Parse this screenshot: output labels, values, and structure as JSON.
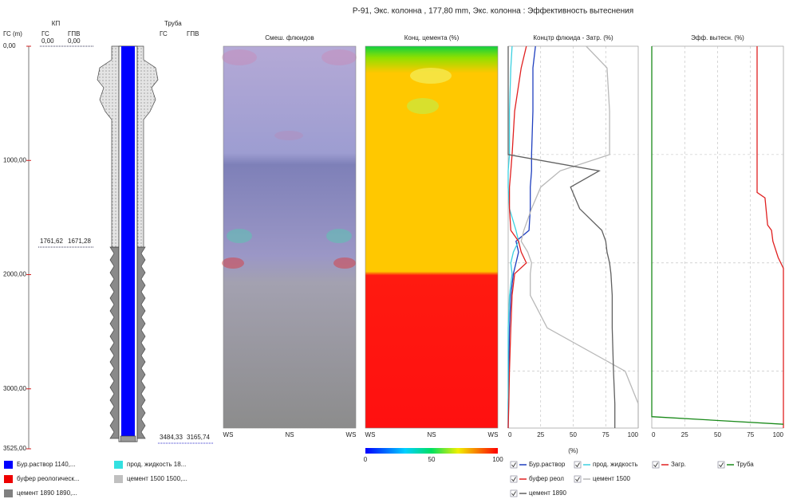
{
  "title": "Р-91, Экс. колонна , 177,80 mm, Экс. колонна : Эффективность вытеснения",
  "depth_track": {
    "axis_label": "ГС (m)",
    "ylim": [
      0,
      3525
    ],
    "yticks": [
      {
        "value": 0,
        "label": "0,00"
      },
      {
        "value": 1000,
        "label": "1000,00"
      },
      {
        "value": 2000,
        "label": "2000,00"
      },
      {
        "value": 3000,
        "label": "3000,00"
      },
      {
        "value": 3525,
        "label": "3525,00"
      }
    ],
    "kp": {
      "label": "КП",
      "gs_label": "ГС",
      "gpv_label": "ГПВ",
      "gs_top": "0,00",
      "gpv_top": "0,00",
      "gs_shoe": "1761,62",
      "gpv_shoe": "1671,28"
    },
    "pipe": {
      "label": "Труба",
      "gs_label": "ГС",
      "gpv_label": "ГПВ",
      "gs_bottom": "3484,33",
      "gpv_bottom": "3165,74"
    }
  },
  "panels": [
    {
      "title": "Смеш. флюидов",
      "x_labels": [
        "WS",
        "NS",
        "WS"
      ]
    },
    {
      "title": "Конц. цемента (%)",
      "x_labels": [
        "WS",
        "NS",
        "WS"
      ],
      "colorbar_lim": [
        0,
        100
      ],
      "colorbar_ticks": [
        0,
        50,
        100
      ]
    },
    {
      "title": "Концтр флюида - Затр. (%)",
      "xlim": [
        0,
        100
      ],
      "xticks": [
        0,
        25,
        50,
        75,
        100
      ],
      "xlabel": "(%)",
      "grid": true,
      "series": [
        {
          "name": "Бур.раствор",
          "color": "#1f3fbf",
          "depth": [
            0,
            200,
            600,
            1000,
            1150,
            1300,
            1500,
            1700,
            1800,
            1900,
            2000,
            2100,
            2300,
            2600,
            3000,
            3300,
            3525
          ],
          "values": [
            21,
            19,
            19,
            18,
            18,
            17,
            17,
            16,
            6,
            8,
            6,
            4,
            2,
            1,
            0.5,
            0,
            0
          ]
        },
        {
          "name": "прод. жидкость",
          "color": "#3cd0e0",
          "depth": [
            0,
            200,
            600,
            1000,
            1150,
            1300,
            1500,
            1700,
            1800,
            1900,
            2000,
            2100,
            2300,
            2600,
            3000,
            3300,
            3525
          ],
          "values": [
            3,
            2,
            1,
            1,
            0,
            0,
            1,
            6,
            8,
            4,
            2,
            3,
            1,
            0,
            0,
            0,
            0
          ]
        },
        {
          "name": "буфер реол",
          "color": "#e02020",
          "depth": [
            0,
            200,
            600,
            1000,
            1150,
            1300,
            1500,
            1700,
            1800,
            1900,
            2000,
            2100,
            2300,
            2600,
            3000,
            3300,
            3525
          ],
          "values": [
            14,
            10,
            5,
            3,
            2,
            1,
            1,
            2,
            8,
            10,
            14,
            5,
            3,
            2,
            1,
            0.5,
            0
          ]
        },
        {
          "name": "цемент 1500",
          "color": "#b8b8b8",
          "depth": [
            0,
            200,
            600,
            1000,
            1150,
            1300,
            1500,
            1700,
            1800,
            1900,
            2000,
            2100,
            2300,
            2600,
            3000,
            3300,
            3525
          ],
          "values": [
            60,
            76,
            78,
            78,
            40,
            25,
            18,
            12,
            10,
            15,
            18,
            17,
            17,
            30,
            90,
            100,
            100
          ]
        },
        {
          "name": "цемент 1890",
          "color": "#606060",
          "depth": [
            0,
            200,
            600,
            1000,
            1150,
            1300,
            1500,
            1700,
            1800,
            1900,
            2000,
            2100,
            2300,
            2600,
            3000,
            3300,
            3525
          ],
          "values": [
            0,
            0,
            0,
            0,
            70,
            48,
            55,
            72,
            75,
            76,
            78,
            79,
            80,
            80,
            81,
            82,
            82
          ]
        }
      ]
    },
    {
      "title": "Эфф. вытесн. (%)",
      "xlim": [
        0,
        100
      ],
      "xticks": [
        0,
        25,
        50,
        75,
        100
      ],
      "grid": true,
      "series": [
        {
          "name": "Загр.",
          "color": "#e02020",
          "depth": [
            0,
            1350,
            1400,
            1650,
            1700,
            1800,
            1950,
            2050,
            3525
          ],
          "values": [
            80,
            80,
            86,
            88,
            91,
            92,
            96,
            100,
            100
          ]
        },
        {
          "name": "Труба",
          "color": "#1a8a1a",
          "depth": [
            0,
            3420,
            3490
          ],
          "values": [
            0,
            0,
            100
          ]
        }
      ]
    }
  ],
  "fluid_legend": [
    {
      "name": "Бур.раствор 1140,...",
      "color": "#0000ff"
    },
    {
      "name": "буфер реологическ...",
      "color": "#ee0000"
    },
    {
      "name": "цемент 1890 1890,...",
      "color": "#808080"
    },
    {
      "name": "прод. жидкость 18...",
      "color": "#33e0e0"
    },
    {
      "name": "цемент 1500 1500,...",
      "color": "#c0c0c0"
    }
  ]
}
